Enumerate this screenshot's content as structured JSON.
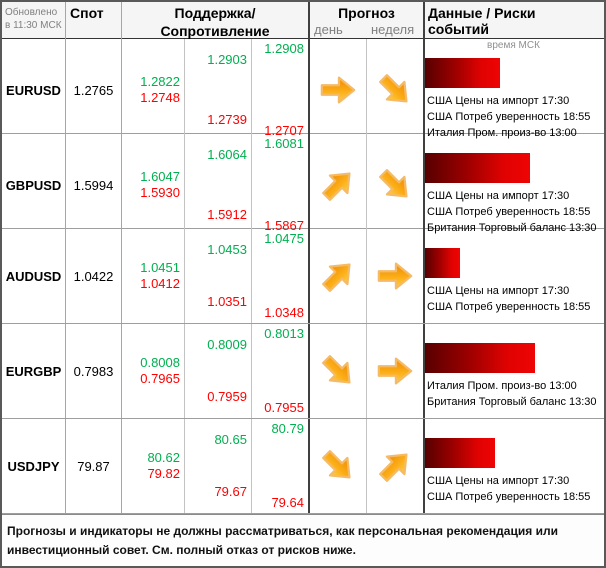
{
  "header": {
    "updated_line1": "Обновлено",
    "updated_line2": "в 11:30 МСК",
    "spot": "Спот",
    "support_resistance": "Поддержка/Сопротивление",
    "forecast": "Прогноз",
    "day": "день",
    "week": "неделя",
    "data_risks": "Данные / Риски событий",
    "time_msk": "время МСК"
  },
  "colors": {
    "resistance_green": "#00B050",
    "support_red": "#FF0000",
    "arrow_orange_dark": "#F08A00",
    "arrow_orange_light": "#FFCF45",
    "arrow_outline": "#F5BA66",
    "risk_bar_dark": "#570000",
    "risk_bar_bright": "#EE0404"
  },
  "rows": [
    {
      "pair": "EURUSD",
      "spot": "1.2765",
      "sr": [
        {
          "res": "1.2822",
          "sup": "1.2748"
        },
        {
          "res": "1.2903",
          "sup": "1.2739"
        },
        {
          "res": "1.2908",
          "sup": "1.2707"
        }
      ],
      "day_arrow": "right",
      "week_arrow": "down-right",
      "risk_width": 75,
      "events": [
        "США Цены на импорт 17:30",
        "США Потреб уверенность 18:55",
        "Италия Пром. произ-во 13:00"
      ]
    },
    {
      "pair": "GBPUSD",
      "spot": "1.5994",
      "sr": [
        {
          "res": "1.6047",
          "sup": "1.5930"
        },
        {
          "res": "1.6064",
          "sup": "1.5912"
        },
        {
          "res": "1.6081",
          "sup": "1.5867"
        }
      ],
      "day_arrow": "up-right",
      "week_arrow": "down-right",
      "risk_width": 105,
      "events": [
        "США Цены на импорт 17:30",
        "США Потреб уверенность 18:55",
        "Британия Торговый баланс 13:30"
      ]
    },
    {
      "pair": "AUDUSD",
      "spot": "1.0422",
      "sr": [
        {
          "res": "1.0451",
          "sup": "1.0412"
        },
        {
          "res": "1.0453",
          "sup": "1.0351"
        },
        {
          "res": "1.0475",
          "sup": "1.0348"
        }
      ],
      "day_arrow": "up-right",
      "week_arrow": "right",
      "risk_width": 35,
      "events": [
        "США Цены на импорт 17:30",
        "США Потреб уверенность 18:55"
      ]
    },
    {
      "pair": "EURGBP",
      "spot": "0.7983",
      "sr": [
        {
          "res": "0.8008",
          "sup": "0.7965"
        },
        {
          "res": "0.8009",
          "sup": "0.7959"
        },
        {
          "res": "0.8013",
          "sup": "0.7955"
        }
      ],
      "day_arrow": "down-right",
      "week_arrow": "right",
      "risk_width": 110,
      "events": [
        "Италия Пром. произ-во 13:00",
        "Британия Торговый баланс 13:30"
      ]
    },
    {
      "pair": "USDJPY",
      "spot": "79.87",
      "sr": [
        {
          "res": "80.62",
          "sup": "79.82"
        },
        {
          "res": "80.65",
          "sup": "79.67"
        },
        {
          "res": "80.79",
          "sup": "79.64"
        }
      ],
      "day_arrow": "down-right",
      "week_arrow": "up-right",
      "risk_width": 70,
      "events": [
        "США Цены на импорт 17:30",
        "США Потреб уверенность 18:55"
      ]
    }
  ],
  "disclaimer": "Прогнозы и индикаторы не должны рассматриваться, как персональная рекомендация или инвестиционный совет. См. полный отказ от рисков ниже."
}
